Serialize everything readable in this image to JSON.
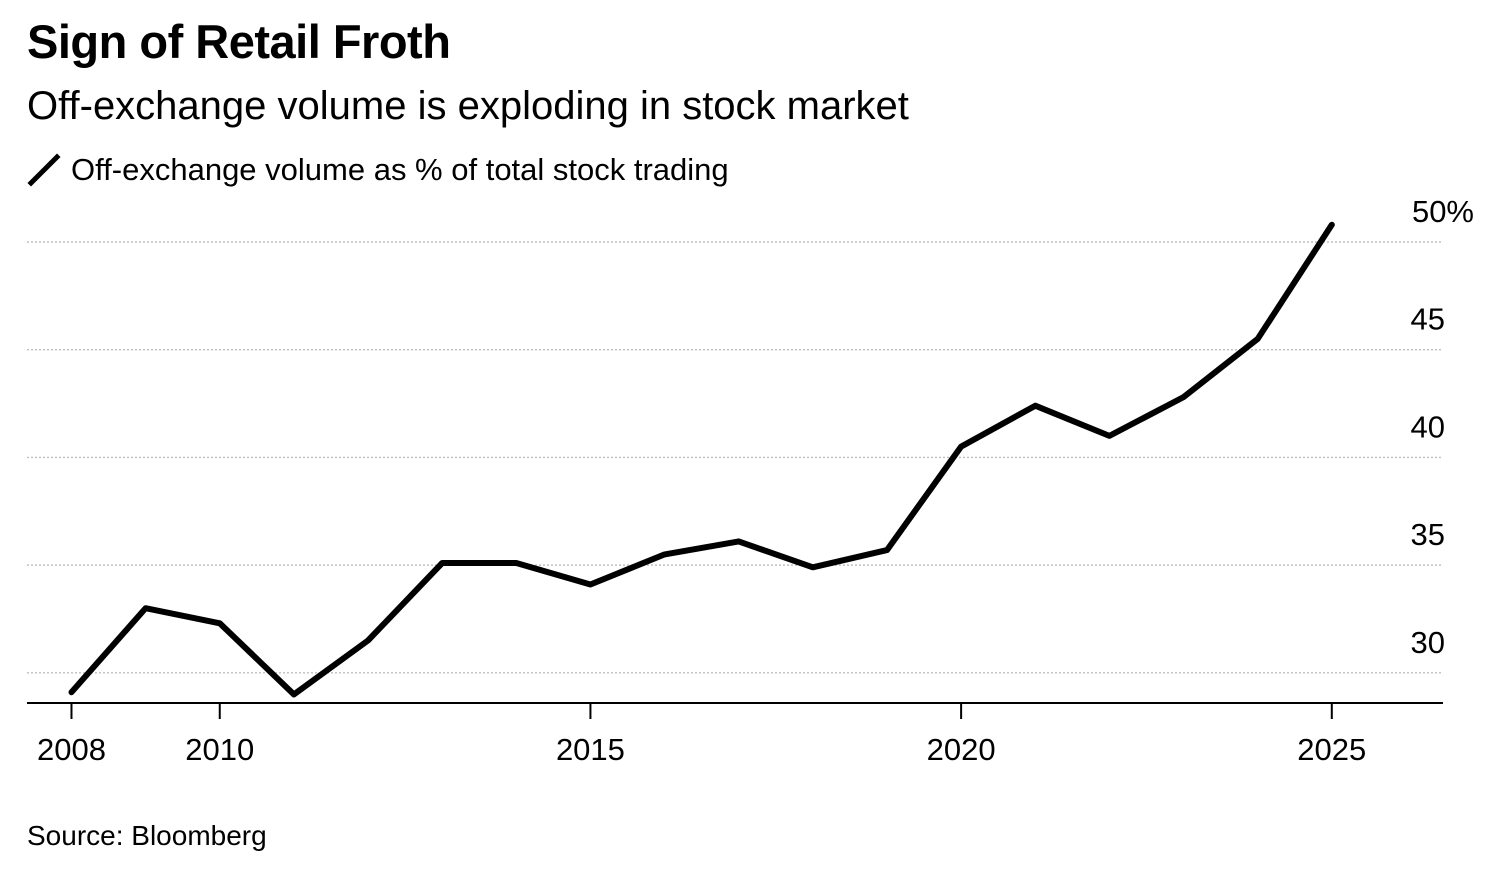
{
  "chart_data": {
    "type": "line",
    "title": "Sign of Retail Froth",
    "subtitle": "Off-exchange volume is exploding in stock market",
    "legend": [
      "Off-exchange volume as % of total stock trading"
    ],
    "xlabel": "",
    "ylabel": "",
    "x_ticks": [
      "2008",
      "2010",
      "2015",
      "2020",
      "2025"
    ],
    "y_ticks": [
      "30",
      "35",
      "40",
      "45",
      "50%"
    ],
    "xlim": [
      2007.4,
      2026.5
    ],
    "ylim": [
      28.6,
      50
    ],
    "grid": true,
    "series": [
      {
        "name": "Off-exchange volume as % of total stock trading",
        "color": "#000000",
        "x": [
          2008,
          2009,
          2010,
          2011,
          2012,
          2013,
          2014,
          2015,
          2016,
          2017,
          2018,
          2019,
          2020,
          2021,
          2022,
          2023,
          2024,
          2025
        ],
        "values": [
          29.1,
          33.0,
          32.3,
          29.0,
          31.5,
          35.1,
          35.1,
          34.1,
          35.5,
          36.1,
          34.9,
          35.7,
          40.5,
          42.4,
          41.0,
          42.8,
          45.5,
          50.8
        ]
      }
    ],
    "source": "Source: Bloomberg"
  }
}
